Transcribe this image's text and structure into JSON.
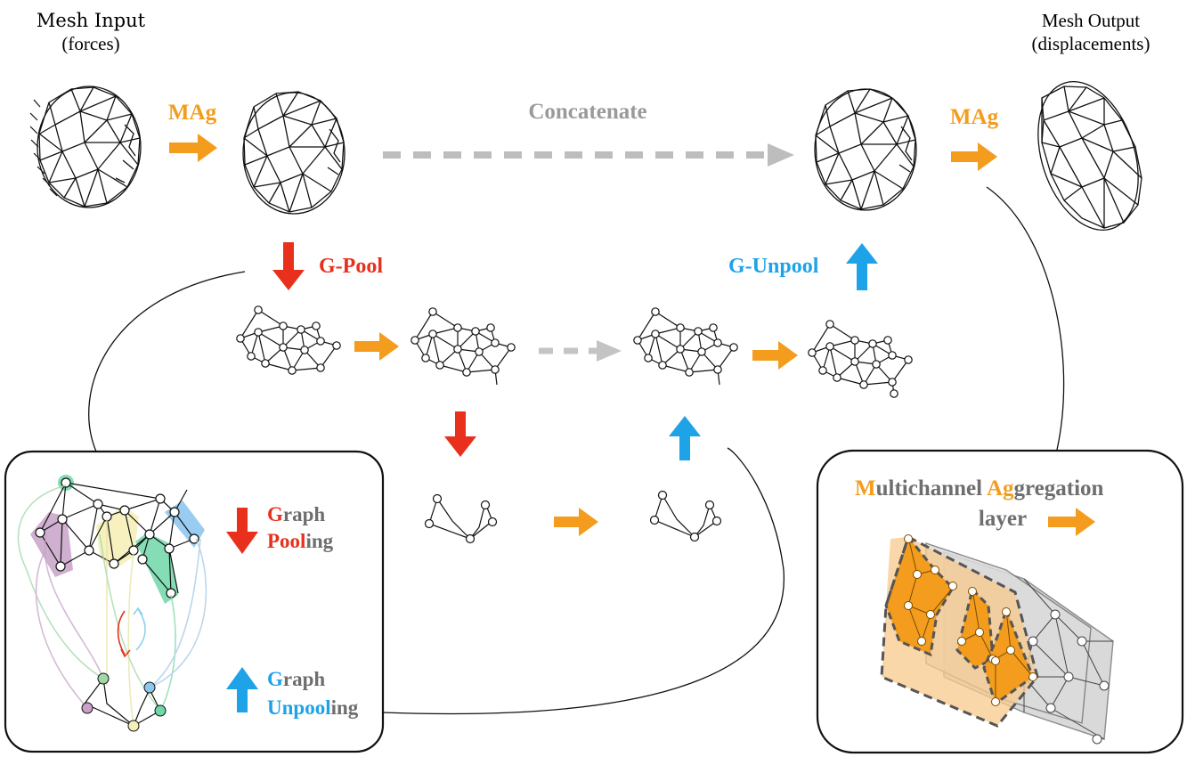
{
  "title_mesh_input_1": "Mesh Input",
  "title_mesh_input_2": "(forces)",
  "title_mesh_output_1": "Mesh Output",
  "title_mesh_output_2": "(displacements)",
  "label_mag_left": "MAg",
  "label_mag_right": "MAg",
  "label_concatenate": "Concatenate",
  "label_gpool": "G-Pool",
  "label_gunpool": "G-Unpool",
  "legend_pool_G": "G",
  "legend_pool_raph": "raph",
  "legend_pool_Pool": "Pool",
  "legend_pool_ing": "ing",
  "legend_unpool_G": "G",
  "legend_unpool_raph": "raph",
  "legend_unpool_Unpool": "Unpool",
  "legend_unpool_ing": "ing",
  "mag_M": "M",
  "mag_ultichannel": "ultichannel ",
  "mag_Ag": "Ag",
  "mag_gregation": "gregation",
  "mag_layer": "layer",
  "colors": {
    "orange": "#F39C1D",
    "red": "#E8301C",
    "blue": "#1EA2E8",
    "gray": "#9A9A9A",
    "darkgray": "#6E6E6E"
  }
}
